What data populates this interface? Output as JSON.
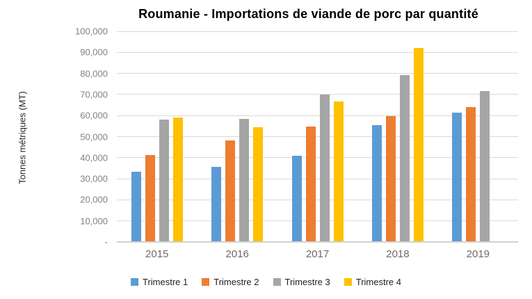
{
  "chart": {
    "title": "Roumanie - Importations de viande de porc par quantité",
    "y_axis_title": "Tonnes métriques (MT)"
  },
  "chart_data": {
    "type": "bar",
    "title": "Roumanie - Importations de viande de porc par quantité",
    "ylabel": "Tonnes métriques (MT)",
    "xlabel": "",
    "categories": [
      "2015",
      "2016",
      "2017",
      "2018",
      "2019"
    ],
    "series": [
      {
        "name": "Trimestre 1",
        "color": "#5B9BD5",
        "values": [
          33500,
          35700,
          41000,
          55400,
          61500
        ]
      },
      {
        "name": "Trimestre 2",
        "color": "#ED7D31",
        "values": [
          41300,
          48300,
          54800,
          59800,
          63900
        ]
      },
      {
        "name": "Trimestre 3",
        "color": "#A5A5A5",
        "values": [
          58000,
          58500,
          70000,
          79200,
          71500
        ]
      },
      {
        "name": "Trimestre 4",
        "color": "#FFC000",
        "values": [
          59000,
          54400,
          66700,
          92100,
          null
        ]
      }
    ],
    "ylim": [
      0,
      100000
    ],
    "ytick_interval": 10000,
    "ytick_labels_top_to_bottom": [
      "100,000",
      "90,000",
      "80,000",
      "70,000",
      "60,000",
      "50,000",
      "40,000",
      "30,000",
      "20,000",
      "10,000",
      "-"
    ],
    "grid": true,
    "legend_position": "bottom",
    "gridline_color": "#D9D9D9",
    "axis_line_color": "#D2D2D2",
    "tick_text_color": "#808080"
  }
}
